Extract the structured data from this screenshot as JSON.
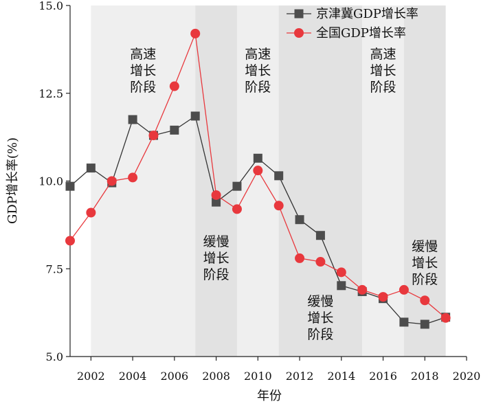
{
  "chart_data": {
    "type": "line",
    "xlabel": "年份",
    "ylabel": "GDP增长率(%)",
    "xlim": [
      2001,
      2020
    ],
    "ylim": [
      5.0,
      15.0
    ],
    "x_ticks": [
      2002,
      2004,
      2006,
      2008,
      2010,
      2012,
      2014,
      2016,
      2018,
      2020
    ],
    "y_ticks": [
      5.0,
      7.5,
      10.0,
      12.5,
      15.0
    ],
    "x_tick_labels": [
      "2002",
      "2004",
      "2006",
      "2008",
      "2010",
      "2012",
      "2014",
      "2016",
      "2018",
      "2020"
    ],
    "y_tick_labels": [
      "5.0",
      "7.5",
      "10.0",
      "12.5",
      "15.0"
    ],
    "legend_position": "top-right",
    "grid": false,
    "x": [
      2001,
      2002,
      2003,
      2004,
      2005,
      2006,
      2007,
      2008,
      2009,
      2010,
      2011,
      2012,
      2013,
      2014,
      2015,
      2016,
      2017,
      2018,
      2019
    ],
    "series": [
      {
        "name": "京津冀GDP增长率",
        "marker": "square",
        "color": "#4d4d4d",
        "line_color": "#333333",
        "values": [
          9.85,
          10.37,
          9.95,
          11.75,
          11.3,
          11.45,
          11.85,
          9.4,
          9.85,
          10.65,
          10.15,
          8.9,
          8.45,
          7.02,
          6.85,
          6.65,
          5.98,
          5.92,
          6.12
        ]
      },
      {
        "name": "全国GDP增长率",
        "marker": "circle",
        "color": "#e8383d",
        "line_color": "#e8383d",
        "values": [
          8.3,
          9.1,
          10.0,
          10.1,
          11.3,
          12.7,
          14.2,
          9.6,
          9.2,
          10.3,
          9.3,
          7.8,
          7.7,
          7.4,
          6.9,
          6.7,
          6.9,
          6.6,
          6.1
        ]
      }
    ],
    "phases": [
      {
        "start": 2002,
        "end": 2007,
        "label_lines": [
          "高速",
          "增长",
          "阶段"
        ],
        "shade": "#efefef"
      },
      {
        "start": 2007,
        "end": 2009,
        "label_lines": [
          "缓慢",
          "增长",
          "阶段"
        ],
        "shade": "#e2e2e2"
      },
      {
        "start": 2009,
        "end": 2011,
        "label_lines": [
          "高速",
          "增长",
          "阶段"
        ],
        "shade": "#efefef"
      },
      {
        "start": 2011,
        "end": 2015,
        "label_lines": [
          "缓慢",
          "增长",
          "阶段"
        ],
        "shade": "#e2e2e2"
      },
      {
        "start": 2015,
        "end": 2017,
        "label_lines": [
          "高速",
          "增长",
          "阶段"
        ],
        "shade": "#efefef"
      },
      {
        "start": 2017,
        "end": 2019,
        "label_lines": [
          "缓慢",
          "增长",
          "阶段"
        ],
        "shade": "#e2e2e2"
      }
    ]
  }
}
